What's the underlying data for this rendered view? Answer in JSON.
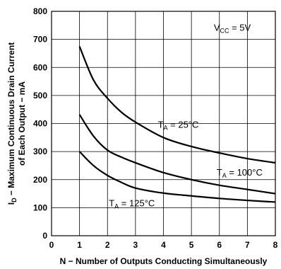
{
  "chart_data": {
    "type": "line",
    "xlabel": "N − Number of Outputs Conducting Simultaneously",
    "ylabel_line1": "I",
    "ylabel_sub": "D",
    "ylabel_line1_rest": " − Maximum Continuous Drain Current",
    "ylabel_line2": "of Each Output − mA",
    "xlim": [
      0,
      8
    ],
    "ylim": [
      0,
      800
    ],
    "xticks": [
      "0",
      "1",
      "2",
      "3",
      "4",
      "5",
      "6",
      "7",
      "8"
    ],
    "yticks": [
      "0",
      "100",
      "200",
      "300",
      "400",
      "500",
      "600",
      "700",
      "800"
    ],
    "grid": true,
    "annotation": {
      "main": "V",
      "sub": "CC",
      "rest": " = 5V"
    },
    "series": [
      {
        "name_main": "T",
        "name_sub": "A",
        "name_rest": " = 25°C",
        "x": [
          1,
          1.5,
          2,
          2.5,
          3,
          4,
          5,
          6,
          7,
          8
        ],
        "y": [
          675,
          555,
          490,
          440,
          405,
          350,
          318,
          295,
          275,
          260
        ]
      },
      {
        "name_main": "T",
        "name_sub": "A",
        "name_rest": " = 100°C",
        "x": [
          1,
          1.5,
          2,
          2.5,
          3,
          4,
          5,
          6,
          7,
          8
        ],
        "y": [
          432,
          355,
          305,
          280,
          260,
          225,
          200,
          180,
          165,
          150
        ]
      },
      {
        "name_main": "T",
        "name_sub": "A",
        "name_rest": " = 125°C",
        "x": [
          1,
          1.5,
          2,
          2.5,
          3,
          4,
          5,
          6,
          7,
          8
        ],
        "y": [
          300,
          250,
          215,
          190,
          170,
          152,
          142,
          133,
          126,
          120
        ]
      }
    ]
  }
}
